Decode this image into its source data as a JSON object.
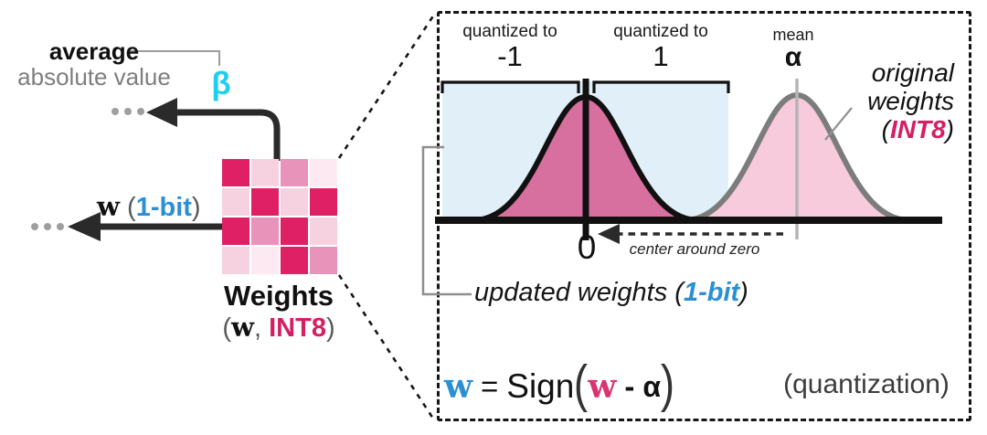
{
  "left": {
    "average_line": "average",
    "absolute_line": "absolute value",
    "beta_symbol": "β",
    "w_label": {
      "w": "w",
      "open": "(",
      "bits": "1-bit",
      "close": ")"
    },
    "weights_title": "Weights",
    "weights_sub": {
      "open": "(",
      "w": "w",
      "comma": ", ",
      "type": "INT8",
      "close": ")"
    }
  },
  "matrix": {
    "rows": 4,
    "cols": 4,
    "palette": {
      "dark": "#e02065",
      "medium": "#e893b9",
      "light": "#f6d2e1",
      "xlight": "#fce9f1"
    },
    "cells": [
      "dark",
      "light",
      "medium",
      "xlight",
      "light",
      "dark",
      "light",
      "dark",
      "dark",
      "medium",
      "dark",
      "light",
      "light",
      "xlight",
      "dark",
      "medium"
    ]
  },
  "panel": {
    "quantized_left": {
      "caption": "quantized to",
      "value": "-1"
    },
    "quantized_right": {
      "caption": "quantized to",
      "value": "1"
    },
    "mean_label": {
      "caption": "mean",
      "symbol": "α"
    },
    "original_label": {
      "line1": "original",
      "line2": "weights",
      "open": "(",
      "type": "INT8",
      "close": ")"
    },
    "zero_tick": "0",
    "center_note": "center around zero",
    "updated_label": {
      "text": "updated weights ",
      "open": "(",
      "bits": "1-bit",
      "close": ")"
    },
    "formula": {
      "lhs": "w",
      "equals": "=",
      "func": "Sign",
      "open": "(",
      "arg": "w",
      "minus": "-",
      "alpha": "α",
      "close": ")"
    },
    "quantization_tag": "(quantization)"
  },
  "colors": {
    "cyan_beta": "#1fcff2",
    "blue_1bit": "#2c8fd4",
    "crimson_int8": "#d51e63",
    "formula_w_pink": "#da3370",
    "curve_fill_quantized": "#d7709f",
    "curve_fill_original": "#f7cbdc",
    "curve_stroke_original": "#7c7c7c",
    "region_blue": "#e1eff8",
    "arrow_black": "#2a2a2a",
    "dots_gray": "#9e9e9e"
  }
}
